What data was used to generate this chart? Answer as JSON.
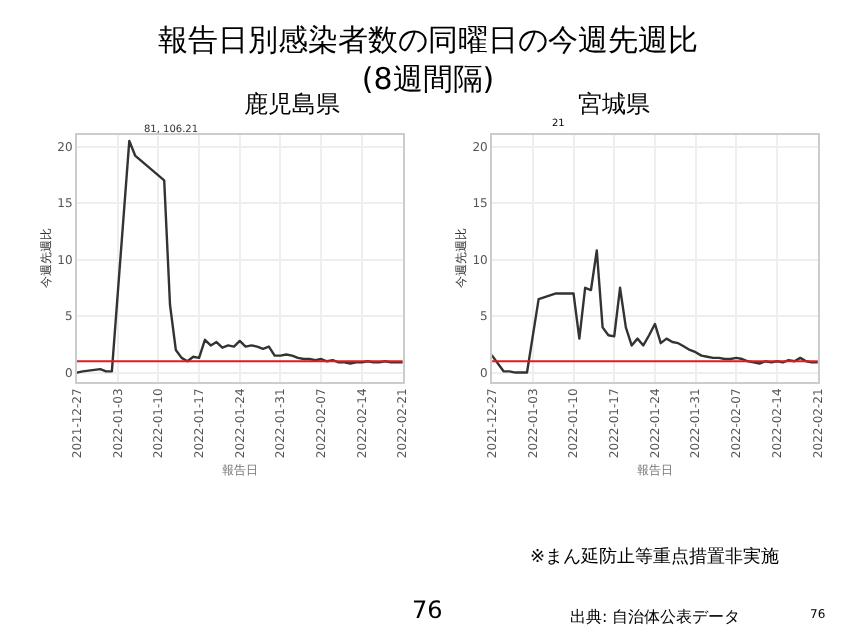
{
  "chart_data": [
    {
      "type": "line",
      "title": "鹿児島県",
      "xlabel": "報告日",
      "ylabel": "今週先週比",
      "grid": true,
      "marker": "none",
      "line_style": "solid",
      "annotations": [
        "報告日別感染者数の同曜日の今週先週比\n(8週間隔)",
        "76",
        {
          "text": "81, 106.21",
          "x": "2022-01-07",
          "y": 20.5
        }
      ],
      "x": [
        "2021-12-27",
        "2021-12-28",
        "2021-12-29",
        "2021-12-30",
        "2021-12-31",
        "2022-01-01",
        "2022-01-02",
        "2022-01-03",
        "2022-01-04",
        "2022-01-05",
        "2022-01-06",
        "2022-01-07",
        "2022-01-08",
        "2022-01-09",
        "2022-01-10",
        "2022-01-11",
        "2022-01-12",
        "2022-01-13",
        "2022-01-14",
        "2022-01-15",
        "2022-01-16",
        "2022-01-17",
        "2022-01-18",
        "2022-01-19",
        "2022-01-20",
        "2022-01-21",
        "2022-01-22",
        "2022-01-23",
        "2022-01-24",
        "2022-01-25",
        "2022-01-26",
        "2022-01-27",
        "2022-01-28",
        "2022-01-29",
        "2022-01-30",
        "2022-01-31",
        "2022-02-01",
        "2022-02-02",
        "2022-02-03",
        "2022-02-04",
        "2022-02-05",
        "2022-02-06",
        "2022-02-07",
        "2022-02-08",
        "2022-02-09",
        "2022-02-10",
        "2022-02-11",
        "2022-02-12",
        "2022-02-13",
        "2022-02-14",
        "2022-02-15",
        "2022-02-16",
        "2022-02-17",
        "2022-02-18",
        "2022-02-19",
        "2022-02-20",
        "2022-02-21"
      ],
      "series": [
        {
          "color": "#333333",
          "values": [
            0,
            0.1,
            null,
            null,
            0.3,
            0.1,
            0.1,
            null,
            null,
            20.5,
            19.2,
            null,
            null,
            null,
            null,
            17,
            6,
            2,
            1.3,
            1.0,
            1.4,
            1.3,
            2.9,
            2.4,
            2.7,
            2.2,
            2.4,
            2.3,
            2.8,
            2.3,
            2.4,
            2.3,
            2.1,
            2.3,
            1.5,
            1.5,
            1.6,
            1.5,
            1.3,
            1.2,
            1.2,
            1.1,
            1.2,
            1.0,
            1.1,
            0.9,
            0.9,
            0.8,
            0.9,
            0.9,
            1.0,
            0.9,
            0.9,
            1.0,
            0.9,
            0.9,
            0.9
          ]
        }
      ],
      "ref_lines": [
        {
          "axis": "y",
          "value": 1,
          "color": "#e41a1c"
        }
      ],
      "xlim": [
        "2021-12-27",
        "2022-02-21"
      ],
      "xticks": [
        "2021-12-27",
        "2022-01-03",
        "2022-01-10",
        "2022-01-17",
        "2022-01-24",
        "2022-01-31",
        "2022-02-07",
        "2022-02-14",
        "2022-02-21"
      ],
      "ylim": [
        -0.8,
        21
      ],
      "yticks": [
        0,
        5,
        10,
        15,
        20
      ]
    },
    {
      "type": "line",
      "title": "宮城県",
      "xlabel": "報告日",
      "ylabel": "今週先週比",
      "grid": true,
      "marker": "none",
      "line_style": "solid",
      "annotations": [
        "※まん延防止等重点措置非実施",
        "出典: 自治体公表データ",
        "76",
        "21"
      ],
      "x": [
        "2021-12-27",
        "2021-12-28",
        "2021-12-29",
        "2021-12-30",
        "2021-12-31",
        "2022-01-01",
        "2022-01-02",
        "2022-01-03",
        "2022-01-04",
        "2022-01-05",
        "2022-01-06",
        "2022-01-07",
        "2022-01-08",
        "2022-01-09",
        "2022-01-10",
        "2022-01-11",
        "2022-01-12",
        "2022-01-13",
        "2022-01-14",
        "2022-01-15",
        "2022-01-16",
        "2022-01-17",
        "2022-01-18",
        "2022-01-19",
        "2022-01-20",
        "2022-01-21",
        "2022-01-22",
        "2022-01-23",
        "2022-01-24",
        "2022-01-25",
        "2022-01-26",
        "2022-01-27",
        "2022-01-28",
        "2022-01-29",
        "2022-01-30",
        "2022-01-31",
        "2022-02-01",
        "2022-02-02",
        "2022-02-03",
        "2022-02-04",
        "2022-02-05",
        "2022-02-06",
        "2022-02-07",
        "2022-02-08",
        "2022-02-09",
        "2022-02-10",
        "2022-02-11",
        "2022-02-12",
        "2022-02-13",
        "2022-02-14",
        "2022-02-15",
        "2022-02-16",
        "2022-02-17",
        "2022-02-18",
        "2022-02-19",
        "2022-02-20",
        "2022-02-21"
      ],
      "series": [
        {
          "color": "#333333",
          "values": [
            1.5,
            null,
            0.1,
            0.1,
            0,
            null,
            0,
            null,
            6.5,
            null,
            null,
            7,
            null,
            null,
            7,
            3,
            7.5,
            7.3,
            10.8,
            4,
            3.3,
            3.2,
            7.5,
            4,
            2.4,
            3,
            2.4,
            3.3,
            4.3,
            2.6,
            3.0,
            2.7,
            2.6,
            2.3,
            2.0,
            1.8,
            1.5,
            1.4,
            1.3,
            1.3,
            1.2,
            1.2,
            1.3,
            1.2,
            1.0,
            0.9,
            0.8,
            1.0,
            0.9,
            1.0,
            0.9,
            1.1,
            1.0,
            1.3,
            1.0,
            0.9,
            0.9
          ]
        }
      ],
      "ref_lines": [
        {
          "axis": "y",
          "value": 1,
          "color": "#e41a1c"
        }
      ],
      "xlim": [
        "2021-12-27",
        "2022-02-21"
      ],
      "xticks": [
        "2021-12-27",
        "2022-01-03",
        "2022-01-10",
        "2022-01-17",
        "2022-01-24",
        "2022-01-31",
        "2022-02-07",
        "2022-02-14",
        "2022-02-21"
      ],
      "ylim": [
        -0.8,
        21
      ],
      "yticks": [
        0,
        5,
        10,
        15,
        20
      ]
    }
  ]
}
